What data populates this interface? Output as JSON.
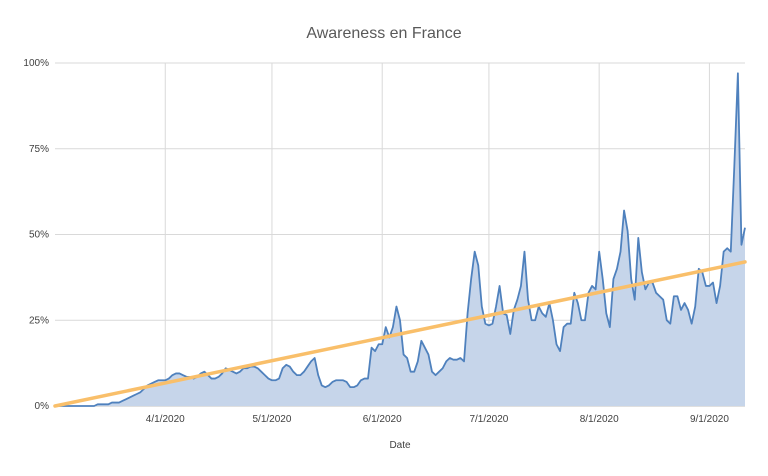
{
  "chart_data": {
    "type": "area",
    "title": "Awareness en France",
    "xlabel": "Date",
    "ylabel": "",
    "ylim": [
      0,
      100
    ],
    "yticks": [
      "0%",
      "25%",
      "50%",
      "75%",
      "100%"
    ],
    "x_start": "2020-03-01",
    "xticks": [
      {
        "date": "2020-04-01",
        "label": "4/1/2020"
      },
      {
        "date": "2020-05-01",
        "label": "5/1/2020"
      },
      {
        "date": "2020-06-01",
        "label": "6/1/2020"
      },
      {
        "date": "2020-07-01",
        "label": "7/1/2020"
      },
      {
        "date": "2020-08-01",
        "label": "8/1/2020"
      },
      {
        "date": "2020-09-01",
        "label": "9/1/2020"
      }
    ],
    "grid": true,
    "legend": "none",
    "colors": {
      "series": "#4f81bd",
      "fill": "#c6d5ea",
      "trend": "#f9bf6a",
      "grid": "#d9d9d9"
    },
    "series": [
      {
        "values": [
          0,
          0,
          0,
          0,
          0,
          0,
          0,
          0,
          0,
          0,
          0,
          0,
          0.5,
          0.5,
          0.5,
          0.5,
          1,
          1,
          1,
          1.5,
          2,
          2.5,
          3,
          3.5,
          4,
          5,
          6,
          6.5,
          7,
          7.5,
          7.5,
          7.5,
          8,
          9,
          9.5,
          9.5,
          9,
          8.5,
          8.5,
          8,
          8.5,
          9.5,
          10,
          9,
          8,
          8,
          8.5,
          9.5,
          11,
          10.5,
          10,
          9.5,
          10,
          11,
          11,
          11.5,
          11.5,
          11,
          10,
          9,
          8,
          7.5,
          7.5,
          8,
          11,
          12,
          11.5,
          10,
          9,
          9,
          10,
          11.5,
          13,
          14,
          9,
          6,
          5.5,
          6,
          7,
          7.5,
          7.5,
          7.5,
          7,
          5.5,
          5.5,
          6,
          7.5,
          8,
          8,
          17,
          16,
          18,
          18,
          23,
          20,
          23,
          29,
          25,
          15,
          14,
          10,
          10,
          13,
          19,
          17,
          15,
          10,
          9,
          10,
          11,
          13,
          14,
          13.5,
          13.5,
          14,
          13,
          27,
          37,
          45,
          41,
          29,
          24,
          23.5,
          24,
          29,
          35,
          27,
          26.5,
          21,
          28,
          31,
          35,
          45,
          31,
          25,
          25,
          29,
          27,
          26,
          30,
          25,
          18,
          16,
          23,
          24,
          24,
          33,
          30,
          25,
          25,
          33,
          35,
          34,
          45,
          37,
          27,
          23,
          37,
          40,
          45,
          57,
          51,
          37,
          31,
          49,
          39,
          34,
          36,
          36,
          33,
          32,
          31,
          25,
          24,
          32,
          32,
          28,
          30,
          28,
          24,
          29,
          40,
          39,
          35,
          35,
          36,
          30,
          35,
          45,
          46,
          45,
          70,
          97,
          47,
          52
        ]
      }
    ],
    "trendline": {
      "type": "linear",
      "from": 0,
      "to": 42
    }
  }
}
